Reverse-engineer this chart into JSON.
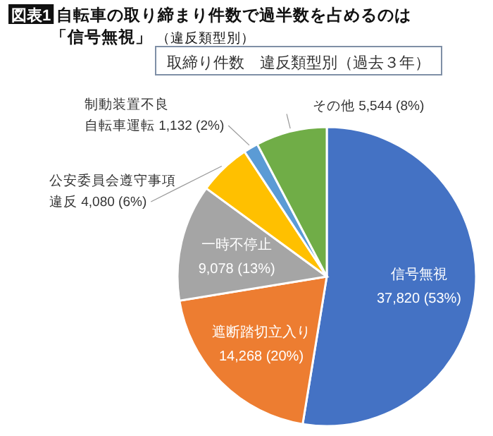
{
  "chart_data": {
    "type": "pie",
    "title": "図表1 自転車の取り締まり件数で過半数を占めるのは「信号無視」（違反類型別）",
    "subtitle": "取締り件数　違反類型別（過去３年）",
    "categories": [
      "信号無視",
      "遮断踏切立入り",
      "一時不停止",
      "公安委員会遵守事項違反",
      "制動装置不良自転車運転",
      "その他"
    ],
    "values": [
      37820,
      14268,
      9078,
      4080,
      1132,
      5544
    ],
    "value_labels": [
      "37,820 (53%)",
      "14,268 (20%)",
      "9,078 (13%)",
      "4,080 (6%)",
      "1,132 (2%)",
      "5,544 (8%)"
    ],
    "colors": [
      "#4472c4",
      "#ed7d31",
      "#a5a5a5",
      "#ffc000",
      "#5b9bd5",
      "#70ad47"
    ]
  }
}
